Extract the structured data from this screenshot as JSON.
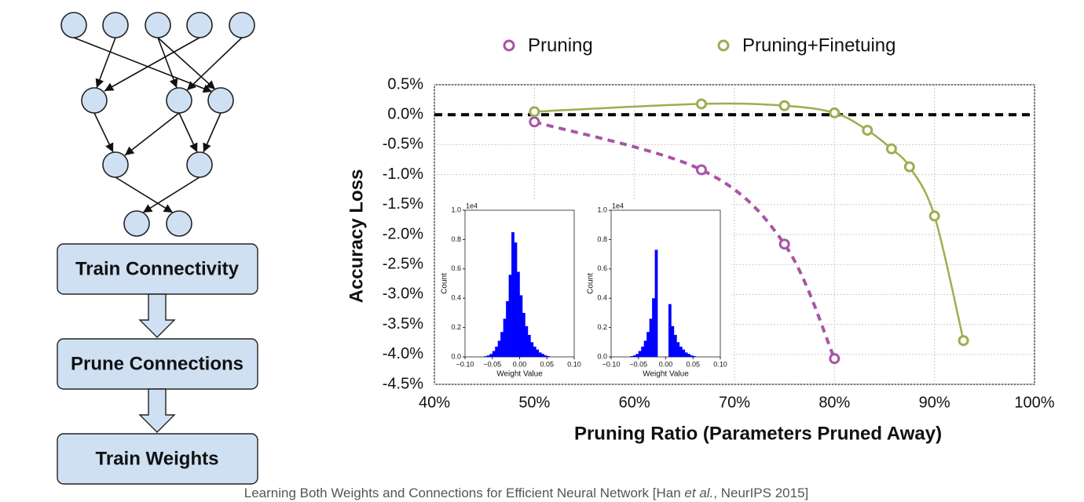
{
  "diagram": {
    "steps": [
      "Train Connectivity",
      "Prune Connections",
      "Train Weights"
    ]
  },
  "citation": {
    "before": "Learning Both Weights and Connections for Efficient Neural Network [Han ",
    "italic": "et al.",
    "after": ", NeurIPS 2015]"
  },
  "chart_data": [
    {
      "type": "line",
      "xlabel": "Pruning Ratio (Parameters Pruned Away)",
      "ylabel": "Accuracy Loss",
      "xlim": [
        40,
        100
      ],
      "ylim": [
        -4.5,
        0.5
      ],
      "xticks": [
        {
          "value": 40,
          "label": "40%"
        },
        {
          "value": 50,
          "label": "50%"
        },
        {
          "value": 60,
          "label": "60%"
        },
        {
          "value": 70,
          "label": "70%"
        },
        {
          "value": 80,
          "label": "80%"
        },
        {
          "value": 90,
          "label": "90%"
        },
        {
          "value": 100,
          "label": "100%"
        }
      ],
      "yticks": [
        {
          "value": 0.5,
          "label": "0.5%"
        },
        {
          "value": 0,
          "label": "0.0%"
        },
        {
          "value": -0.5,
          "label": "-0.5%"
        },
        {
          "value": -1,
          "label": "-1.0%"
        },
        {
          "value": -1.5,
          "label": "-1.5%"
        },
        {
          "value": -2,
          "label": "-2.0%"
        },
        {
          "value": -2.5,
          "label": "-2.5%"
        },
        {
          "value": -3,
          "label": "-3.0%"
        },
        {
          "value": -3.5,
          "label": "-3.5%"
        },
        {
          "value": -4,
          "label": "-4.0%"
        },
        {
          "value": -4.5,
          "label": "-4.5%"
        }
      ],
      "grid": true,
      "reference_line": 0,
      "legend": "top",
      "series": [
        {
          "name": "Pruning",
          "color": "#a855a6",
          "dashed": true,
          "x": [
            50,
            66.7,
            75,
            80
          ],
          "values": [
            -0.12,
            -0.92,
            -2.16,
            -4.07
          ]
        },
        {
          "name": "Pruning+Finetuing",
          "color": "#9aaf4f",
          "dashed": false,
          "x": [
            50,
            66.7,
            75,
            80,
            83.3,
            85.7,
            87.5,
            90,
            92.9
          ],
          "values": [
            0.05,
            0.18,
            0.15,
            0.03,
            -0.26,
            -0.57,
            -0.87,
            -1.69,
            -3.77
          ]
        }
      ]
    },
    {
      "type": "histogram",
      "xlabel": "Weight Value",
      "ylabel": "Count",
      "scale_label": "1e4",
      "color": "#0000ff",
      "xlim": [
        -0.1,
        0.1
      ],
      "ylim": [
        0,
        1.0
      ],
      "xticks": [
        {
          "value": -0.1,
          "label": "−0.10"
        },
        {
          "value": -0.05,
          "label": "−0.05"
        },
        {
          "value": 0,
          "label": "0.00"
        },
        {
          "value": 0.05,
          "label": "0.05"
        },
        {
          "value": 0.1,
          "label": "0.10"
        }
      ],
      "yticks": [
        {
          "value": 0,
          "label": "0.0"
        },
        {
          "value": 0.2,
          "label": "0.2"
        },
        {
          "value": 0.4,
          "label": "0.4"
        },
        {
          "value": 0.6,
          "label": "0.6"
        },
        {
          "value": 0.8,
          "label": "0.8"
        },
        {
          "value": 1.0,
          "label": "1.0"
        }
      ],
      "bins": [
        -0.1,
        -0.095,
        -0.09,
        -0.085,
        -0.08,
        -0.075,
        -0.07,
        -0.065,
        -0.06,
        -0.055,
        -0.05,
        -0.045,
        -0.04,
        -0.035,
        -0.03,
        -0.025,
        -0.02,
        -0.015,
        -0.01,
        -0.005,
        0,
        0.005,
        0.01,
        0.015,
        0.02,
        0.025,
        0.03,
        0.035,
        0.04,
        0.045,
        0.05,
        0.055,
        0.06,
        0.065,
        0.07,
        0.075,
        0.08,
        0.085,
        0.09,
        0.095,
        0.1
      ],
      "values": [
        0,
        0,
        0,
        0,
        0,
        0,
        0,
        0.005,
        0.01,
        0.02,
        0.04,
        0.07,
        0.11,
        0.17,
        0.26,
        0.38,
        0.56,
        0.85,
        0.78,
        0.58,
        0.42,
        0.3,
        0.21,
        0.15,
        0.1,
        0.07,
        0.05,
        0.03,
        0.02,
        0.01,
        0.005,
        0,
        0,
        0,
        0,
        0,
        0,
        0,
        0,
        0
      ]
    },
    {
      "type": "histogram",
      "xlabel": "Weight Value",
      "ylabel": "Count",
      "scale_label": "1e4",
      "color": "#0000ff",
      "xlim": [
        -0.1,
        0.1
      ],
      "ylim": [
        0,
        1.0
      ],
      "xticks": [
        {
          "value": -0.1,
          "label": "−0.10"
        },
        {
          "value": -0.05,
          "label": "−0.05"
        },
        {
          "value": 0,
          "label": "0.00"
        },
        {
          "value": 0.05,
          "label": "0.05"
        },
        {
          "value": 0.1,
          "label": "0.10"
        }
      ],
      "yticks": [
        {
          "value": 0,
          "label": "0.0"
        },
        {
          "value": 0.2,
          "label": "0.2"
        },
        {
          "value": 0.4,
          "label": "0.4"
        },
        {
          "value": 0.6,
          "label": "0.6"
        },
        {
          "value": 0.8,
          "label": "0.8"
        },
        {
          "value": 1.0,
          "label": "1.0"
        }
      ],
      "bins": [
        -0.1,
        -0.095,
        -0.09,
        -0.085,
        -0.08,
        -0.075,
        -0.07,
        -0.065,
        -0.06,
        -0.055,
        -0.05,
        -0.045,
        -0.04,
        -0.035,
        -0.03,
        -0.025,
        -0.02,
        -0.015,
        -0.01,
        -0.005,
        0,
        0.005,
        0.01,
        0.015,
        0.02,
        0.025,
        0.03,
        0.035,
        0.04,
        0.045,
        0.05,
        0.055,
        0.06,
        0.065,
        0.07,
        0.075,
        0.08,
        0.085,
        0.09,
        0.095,
        0.1
      ],
      "values": [
        0,
        0,
        0,
        0,
        0,
        0,
        0,
        0.005,
        0.01,
        0.02,
        0.04,
        0.07,
        0.11,
        0.17,
        0.26,
        0.4,
        0.73,
        0,
        0,
        0,
        0,
        0.36,
        0.21,
        0.15,
        0.1,
        0.07,
        0.05,
        0.03,
        0.02,
        0.01,
        0.005,
        0,
        0,
        0,
        0,
        0,
        0,
        0,
        0,
        0
      ]
    }
  ]
}
